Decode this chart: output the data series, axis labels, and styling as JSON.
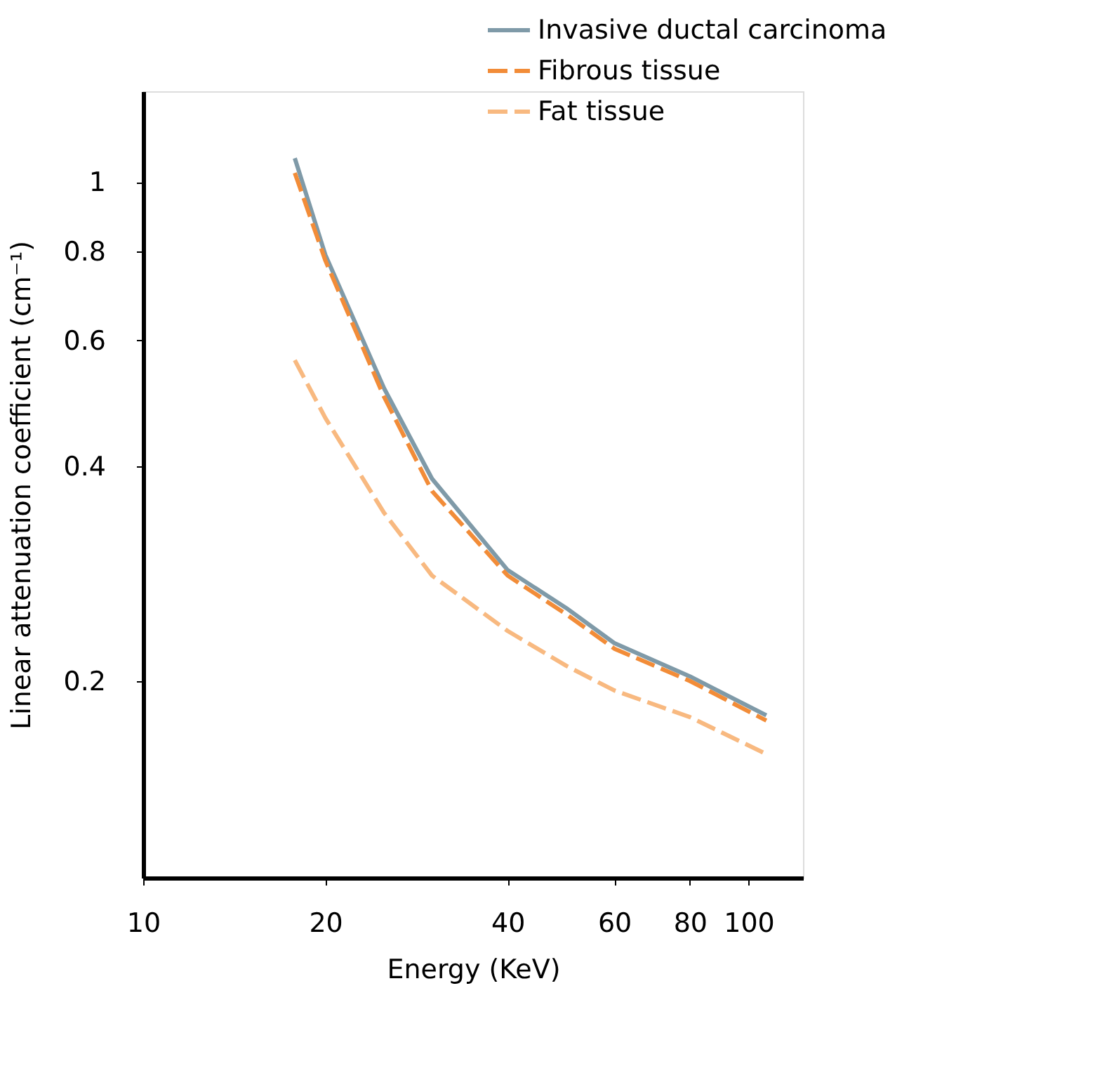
{
  "chart_data": {
    "type": "line",
    "xlabel": "Energy (KeV)",
    "ylabel": "Linear attenuation coefficient (cm⁻¹)",
    "log": "xy",
    "xlim": [
      10,
      123
    ],
    "xticks": [
      10,
      20,
      40,
      60,
      80,
      100
    ],
    "ylim": [
      0.106,
      1.34
    ],
    "yticks": [
      0.2,
      0.4,
      0.6,
      0.8,
      1
    ],
    "grid": false,
    "legend": "top right",
    "marker": "none",
    "x": [
      17.8,
      20,
      25,
      30,
      40,
      50,
      60,
      80,
      107
    ],
    "series": [
      {
        "name": "Invasive ductal carcinoma",
        "color": "#7f9aa8",
        "line_style": "solid",
        "values": [
          1.08,
          0.79,
          0.514,
          0.384,
          0.286,
          0.253,
          0.226,
          0.203,
          0.179
        ]
      },
      {
        "name": "Fibrous tissue",
        "color": "#f28c38",
        "line_style": "dashed",
        "values": [
          1.03,
          0.776,
          0.5,
          0.369,
          0.281,
          0.248,
          0.222,
          0.2,
          0.176
        ]
      },
      {
        "name": "Fat tissue",
        "color": "#f8b980",
        "line_style": "dashed",
        "values": [
          0.563,
          0.467,
          0.344,
          0.281,
          0.235,
          0.21,
          0.194,
          0.178,
          0.158
        ]
      }
    ]
  }
}
